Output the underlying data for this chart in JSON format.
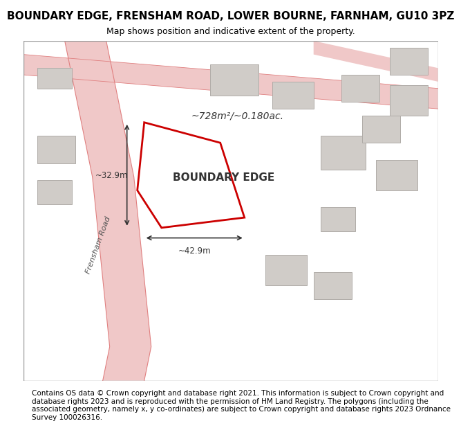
{
  "title": "BOUNDARY EDGE, FRENSHAM ROAD, LOWER BOURNE, FARNHAM, GU10 3PZ",
  "subtitle": "Map shows position and indicative extent of the property.",
  "footer": "Contains OS data © Crown copyright and database right 2021. This information is subject to Crown copyright and database rights 2023 and is reproduced with the permission of HM Land Registry. The polygons (including the associated geometry, namely x, y co-ordinates) are subject to Crown copyright and database rights 2023 Ordnance Survey 100026316.",
  "bg_color": "#f5f0ea",
  "map_bg": "#f5f0ea",
  "title_bg": "#ffffff",
  "footer_bg": "#ffffff",
  "map_border_color": "#cccccc",
  "road_color": "#f0c8c8",
  "road_edge_color": "#e08080",
  "building_fill": "#d0ccc8",
  "building_edge": "#b0aca8",
  "highlight_fill": "#ffffff",
  "highlight_edge": "#cc0000",
  "frensham_road_label": "Frensham Road",
  "property_label": "BOUNDARY EDGE",
  "area_label": "~728m²/~0.180ac.",
  "dim_width": "~42.9m",
  "dim_height": "~32.9m",
  "title_fontsize": 11,
  "subtitle_fontsize": 9,
  "footer_fontsize": 7.5
}
